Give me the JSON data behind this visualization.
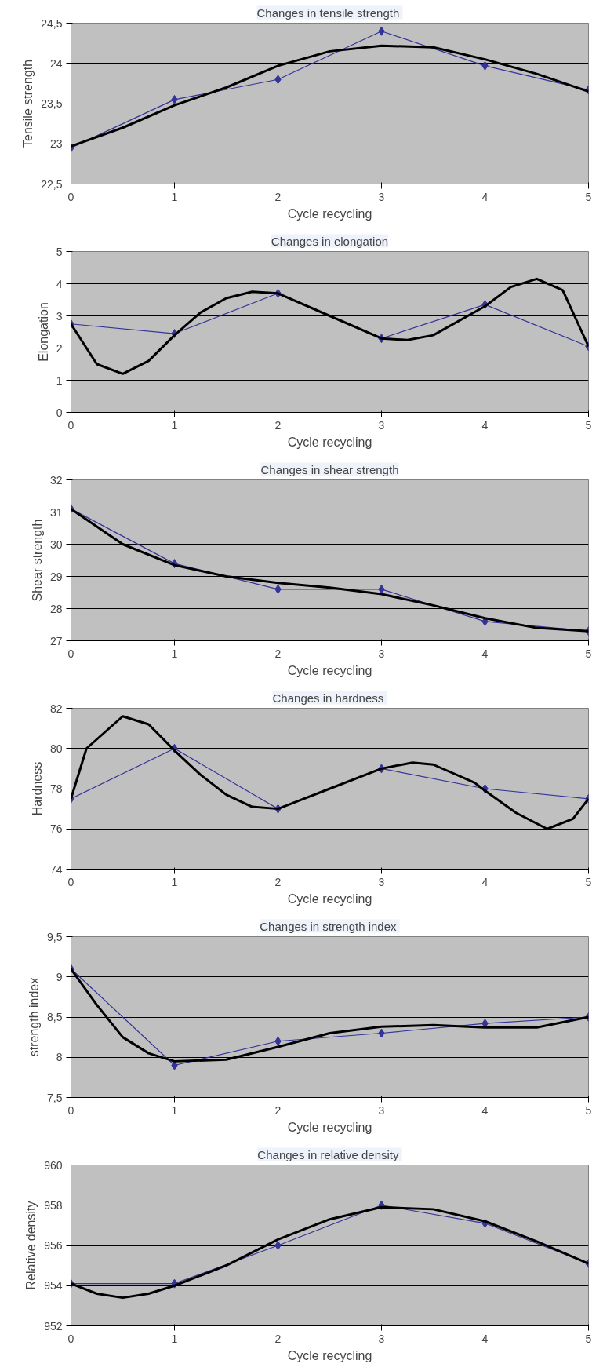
{
  "chart_data": [
    {
      "type": "line",
      "title": "Changes in tensile  strength",
      "xlabel": "Cycle recycling",
      "ylabel": "Tensile strength",
      "x": [
        0,
        1,
        2,
        3,
        4,
        5
      ],
      "xlim": [
        0,
        5
      ],
      "xticks": [
        0,
        1,
        2,
        3,
        4,
        5
      ],
      "ylim": [
        22.5,
        24.5
      ],
      "yticks": [
        {
          "value": 22.5,
          "label": "22,5"
        },
        23,
        {
          "value": 23.5,
          "label": "23,5"
        },
        24,
        {
          "value": 24.5,
          "label": "24,5"
        }
      ],
      "grid": "y",
      "marker": "diamond",
      "series": [
        {
          "color": "#333399",
          "values": [
            22.95,
            23.55,
            23.8,
            24.4,
            23.97,
            23.67
          ]
        },
        {
          "type": "line",
          "color": "#000000",
          "marker": "none",
          "x": [
            0,
            0.5,
            1,
            1.5,
            2,
            2.5,
            3,
            3.5,
            4,
            4.5,
            5
          ],
          "values": [
            22.97,
            23.2,
            23.48,
            23.7,
            23.97,
            24.15,
            24.22,
            24.2,
            24.05,
            23.87,
            23.65
          ]
        }
      ]
    },
    {
      "type": "line",
      "title": "Changes in elongation",
      "xlabel": "Cycle recycling",
      "ylabel": "Elongation",
      "x": [
        0,
        1,
        2,
        3,
        4,
        5
      ],
      "xlim": [
        0,
        5
      ],
      "xticks": [
        0,
        1,
        2,
        3,
        4,
        5
      ],
      "ylim": [
        0,
        5
      ],
      "yticks": [
        0,
        1,
        2,
        3,
        4,
        5
      ],
      "grid": "y",
      "marker": "diamond",
      "series": [
        {
          "color": "#333399",
          "values": [
            2.75,
            2.45,
            3.7,
            2.3,
            3.35,
            2.05
          ]
        },
        {
          "type": "line",
          "color": "#000000",
          "marker": "none",
          "x": [
            0,
            0.25,
            0.5,
            0.75,
            1,
            1.25,
            1.5,
            1.75,
            2,
            2.5,
            3,
            3.25,
            3.5,
            4,
            4.25,
            4.5,
            4.75,
            5
          ],
          "values": [
            2.75,
            1.5,
            1.2,
            1.6,
            2.4,
            3.1,
            3.55,
            3.75,
            3.7,
            3.0,
            2.3,
            2.25,
            2.4,
            3.3,
            3.9,
            4.15,
            3.8,
            2.05
          ]
        }
      ]
    },
    {
      "type": "line",
      "title": "Changes in shear strength",
      "xlabel": "Cycle recycling",
      "ylabel": "Shear strength",
      "x": [
        0,
        1,
        2,
        3,
        4,
        5
      ],
      "xlim": [
        0,
        5
      ],
      "xticks": [
        0,
        1,
        2,
        3,
        4,
        5
      ],
      "ylim": [
        27,
        32
      ],
      "yticks": [
        27,
        28,
        29,
        30,
        31,
        32
      ],
      "grid": "y",
      "marker": "diamond",
      "series": [
        {
          "color": "#333399",
          "values": [
            31.1,
            29.4,
            28.6,
            28.6,
            27.6,
            27.3
          ]
        },
        {
          "type": "line",
          "color": "#000000",
          "marker": "none",
          "x": [
            0,
            0.5,
            1,
            1.5,
            2,
            2.5,
            3,
            3.5,
            4,
            4.5,
            5
          ],
          "values": [
            31.1,
            30.0,
            29.35,
            29.0,
            28.8,
            28.65,
            28.45,
            28.1,
            27.7,
            27.4,
            27.3
          ]
        }
      ]
    },
    {
      "type": "line",
      "title": "Changes in  hardness",
      "xlabel": "Cycle recycling",
      "ylabel": "Hardness",
      "x": [
        0,
        1,
        2,
        3,
        4,
        5
      ],
      "xlim": [
        0,
        5
      ],
      "xticks": [
        0,
        1,
        2,
        3,
        4,
        5
      ],
      "ylim": [
        74,
        82
      ],
      "yticks": [
        74,
        76,
        78,
        80,
        82
      ],
      "grid": "y",
      "marker": "diamond",
      "series": [
        {
          "color": "#333399",
          "values": [
            77.5,
            80,
            77,
            79,
            78,
            77.5
          ]
        },
        {
          "type": "line",
          "color": "#000000",
          "marker": "none",
          "x": [
            0,
            0.15,
            0.5,
            0.75,
            1,
            1.25,
            1.5,
            1.75,
            2,
            2.5,
            3,
            3.3,
            3.5,
            3.9,
            4,
            4.3,
            4.6,
            4.85,
            5
          ],
          "values": [
            77.5,
            80,
            81.6,
            81.2,
            79.9,
            78.7,
            77.7,
            77.1,
            77,
            78,
            79,
            79.3,
            79.2,
            78.3,
            77.9,
            76.8,
            76.0,
            76.5,
            77.5
          ]
        }
      ]
    },
    {
      "type": "line",
      "title": "Changes in  strength index",
      "xlabel": "Cycle recycling",
      "ylabel": "strength index",
      "x": [
        0,
        1,
        2,
        3,
        4,
        5
      ],
      "xlim": [
        0,
        5
      ],
      "xticks": [
        0,
        1,
        2,
        3,
        4,
        5
      ],
      "ylim": [
        7.5,
        9.5
      ],
      "yticks": [
        {
          "value": 7.5,
          "label": "7,5"
        },
        8,
        {
          "value": 8.5,
          "label": "8,5"
        },
        9,
        {
          "value": 9.5,
          "label": "9,5"
        }
      ],
      "grid": "y",
      "marker": "diamond",
      "series": [
        {
          "color": "#333399",
          "values": [
            9.1,
            7.9,
            8.2,
            8.3,
            8.42,
            8.5
          ]
        },
        {
          "type": "line",
          "color": "#000000",
          "marker": "none",
          "x": [
            0,
            0.25,
            0.5,
            0.75,
            1,
            1.5,
            2,
            2.5,
            3,
            3.5,
            4,
            4.5,
            5
          ],
          "values": [
            9.1,
            8.65,
            8.25,
            8.05,
            7.95,
            7.97,
            8.13,
            8.3,
            8.38,
            8.4,
            8.37,
            8.37,
            8.5
          ]
        }
      ]
    },
    {
      "type": "line",
      "title": "Changes in  relative density",
      "xlabel": "Cycle recycling",
      "ylabel": "Relative density",
      "x": [
        0,
        1,
        2,
        3,
        4,
        5
      ],
      "xlim": [
        0,
        5
      ],
      "xticks": [
        0,
        1,
        2,
        3,
        4,
        5
      ],
      "ylim": [
        952,
        960
      ],
      "yticks": [
        952,
        954,
        956,
        958,
        960
      ],
      "grid": "y",
      "marker": "diamond",
      "series": [
        {
          "color": "#333399",
          "values": [
            954.1,
            954.1,
            956,
            958,
            957.1,
            955.1
          ]
        },
        {
          "type": "line",
          "color": "#000000",
          "marker": "none",
          "x": [
            0,
            0.25,
            0.5,
            0.75,
            1,
            1.5,
            2,
            2.5,
            3,
            3.5,
            4,
            4.5,
            5
          ],
          "values": [
            954.1,
            953.6,
            953.4,
            953.6,
            954.0,
            955.0,
            956.3,
            957.3,
            957.9,
            957.8,
            957.2,
            956.2,
            955.1
          ]
        }
      ]
    }
  ]
}
